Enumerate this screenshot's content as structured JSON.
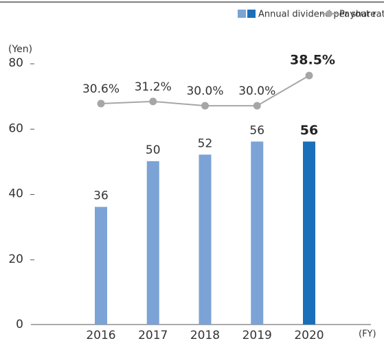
{
  "chart_data": {
    "type": "bar",
    "categories": [
      "2016",
      "2017",
      "2018",
      "2019",
      "2020"
    ],
    "ylim": [
      0,
      80
    ],
    "yticks": [
      0,
      20,
      40,
      60,
      80
    ],
    "y2lim": [
      -31.6,
      42
    ],
    "y_label": "(Yen)",
    "x_label": "(FY)",
    "legend": "top-right",
    "series": [
      {
        "name": "Annual dividend per share",
        "type": "bar",
        "colors": [
          "#7ba3d6",
          "#7ba3d6",
          "#7ba3d6",
          "#7ba3d6",
          "#1a6fba"
        ],
        "values": [
          36,
          50,
          52,
          56,
          56
        ]
      },
      {
        "name": "Payout ratio",
        "type": "line",
        "axis": "y2",
        "color": "#a6a6a6",
        "values": [
          30.6,
          31.2,
          30.0,
          30.0,
          38.5
        ],
        "value_labels": [
          "30.6%",
          "31.2%",
          "30.0%",
          "30.0%",
          "38.5%"
        ]
      }
    ]
  }
}
